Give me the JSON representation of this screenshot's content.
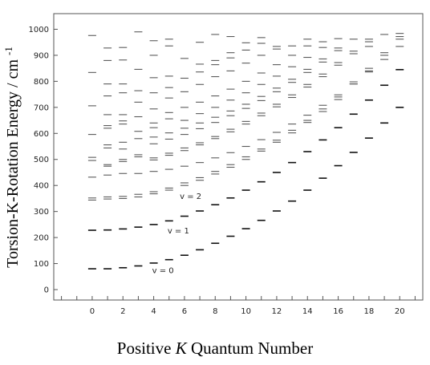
{
  "chart_data": {
    "type": "scatter",
    "xlabel_prefix": "Positive ",
    "xlabel_italic": "K",
    "xlabel_suffix": " Quantum Number",
    "ylabel": "Torsion-K-Rotation Energy / cm",
    "ylabel_sup": "-1",
    "xlim": [
      -2.5,
      21.5
    ],
    "ylim": [
      -40,
      1060
    ],
    "x_ticks": [
      0,
      2,
      4,
      6,
      8,
      10,
      12,
      14,
      16,
      18,
      20
    ],
    "y_ticks": [
      0,
      100,
      200,
      300,
      400,
      500,
      600,
      700,
      800,
      900,
      1000
    ],
    "grid": false,
    "annotations": [
      {
        "text": "v = 0",
        "x": 3.9,
        "y": 72
      },
      {
        "text": "v = 1",
        "x": 4.9,
        "y": 225
      },
      {
        "text": "v = 2",
        "x": 5.7,
        "y": 357
      }
    ],
    "series": [
      {
        "values": [
          {
            "x": 0,
            "y": 80
          },
          {
            "x": 1,
            "y": 80
          },
          {
            "x": 2,
            "y": 84
          },
          {
            "x": 3,
            "y": 91
          },
          {
            "x": 4,
            "y": 102
          },
          {
            "x": 5,
            "y": 115
          },
          {
            "x": 6,
            "y": 132
          },
          {
            "x": 7,
            "y": 153
          },
          {
            "x": 8,
            "y": 178
          },
          {
            "x": 9,
            "y": 205
          },
          {
            "x": 10,
            "y": 234
          },
          {
            "x": 11,
            "y": 266
          },
          {
            "x": 12,
            "y": 302
          },
          {
            "x": 13,
            "y": 340
          },
          {
            "x": 14,
            "y": 382
          },
          {
            "x": 15,
            "y": 428
          },
          {
            "x": 16,
            "y": 476
          },
          {
            "x": 17,
            "y": 527
          },
          {
            "x": 18,
            "y": 582
          },
          {
            "x": 19,
            "y": 640
          },
          {
            "x": 20,
            "y": 700
          }
        ]
      },
      {
        "values": [
          {
            "x": 0,
            "y": 228
          },
          {
            "x": 1,
            "y": 229
          },
          {
            "x": 2,
            "y": 233
          },
          {
            "x": 3,
            "y": 240
          },
          {
            "x": 4,
            "y": 250
          },
          {
            "x": 5,
            "y": 264
          },
          {
            "x": 6,
            "y": 282
          },
          {
            "x": 7,
            "y": 302
          },
          {
            "x": 8,
            "y": 326
          },
          {
            "x": 9,
            "y": 352
          },
          {
            "x": 10,
            "y": 382
          },
          {
            "x": 11,
            "y": 414
          },
          {
            "x": 12,
            "y": 450
          },
          {
            "x": 13,
            "y": 488
          },
          {
            "x": 14,
            "y": 530
          },
          {
            "x": 15,
            "y": 575
          },
          {
            "x": 16,
            "y": 622
          },
          {
            "x": 17,
            "y": 674
          },
          {
            "x": 18,
            "y": 728
          },
          {
            "x": 19,
            "y": 785
          },
          {
            "x": 20,
            "y": 845
          }
        ]
      },
      {
        "values": [
          {
            "x": 0,
            "y": 344
          },
          {
            "x": 0,
            "y": 352
          },
          {
            "x": 1,
            "y": 348
          },
          {
            "x": 1,
            "y": 356
          },
          {
            "x": 2,
            "y": 350
          },
          {
            "x": 2,
            "y": 358
          },
          {
            "x": 3,
            "y": 356
          },
          {
            "x": 3,
            "y": 366
          },
          {
            "x": 4,
            "y": 368
          },
          {
            "x": 4,
            "y": 376
          },
          {
            "x": 5,
            "y": 382
          },
          {
            "x": 5,
            "y": 390
          },
          {
            "x": 6,
            "y": 400
          },
          {
            "x": 6,
            "y": 410
          },
          {
            "x": 7,
            "y": 420
          },
          {
            "x": 7,
            "y": 430
          },
          {
            "x": 8,
            "y": 444
          },
          {
            "x": 8,
            "y": 454
          },
          {
            "x": 9,
            "y": 470
          },
          {
            "x": 9,
            "y": 480
          },
          {
            "x": 10,
            "y": 500
          },
          {
            "x": 10,
            "y": 510
          },
          {
            "x": 11,
            "y": 532
          },
          {
            "x": 11,
            "y": 540
          },
          {
            "x": 12,
            "y": 566
          },
          {
            "x": 12,
            "y": 574
          },
          {
            "x": 13,
            "y": 602
          },
          {
            "x": 13,
            "y": 612
          },
          {
            "x": 14,
            "y": 642
          },
          {
            "x": 14,
            "y": 650
          },
          {
            "x": 15,
            "y": 684
          },
          {
            "x": 15,
            "y": 694
          },
          {
            "x": 16,
            "y": 730
          },
          {
            "x": 16,
            "y": 740
          },
          {
            "x": 17,
            "y": 790
          },
          {
            "x": 17,
            "y": 798
          },
          {
            "x": 18,
            "y": 840
          },
          {
            "x": 18,
            "y": 850
          },
          {
            "x": 19,
            "y": 900
          },
          {
            "x": 19,
            "y": 910
          },
          {
            "x": 20,
            "y": 962
          },
          {
            "x": 20,
            "y": 972
          }
        ]
      },
      {
        "values": [
          {
            "x": 0,
            "y": 432
          },
          {
            "x": 1,
            "y": 440
          },
          {
            "x": 2,
            "y": 446
          },
          {
            "x": 3,
            "y": 446
          },
          {
            "x": 4,
            "y": 454
          },
          {
            "x": 5,
            "y": 462
          },
          {
            "x": 6,
            "y": 474
          },
          {
            "x": 7,
            "y": 488
          },
          {
            "x": 8,
            "y": 506
          },
          {
            "x": 9,
            "y": 526
          },
          {
            "x": 10,
            "y": 550
          },
          {
            "x": 11,
            "y": 576
          },
          {
            "x": 12,
            "y": 604
          },
          {
            "x": 13,
            "y": 636
          },
          {
            "x": 14,
            "y": 670
          },
          {
            "x": 15,
            "y": 708
          },
          {
            "x": 16,
            "y": 748
          },
          {
            "x": 17,
            "y": 790
          },
          {
            "x": 18,
            "y": 836
          },
          {
            "x": 19,
            "y": 884
          },
          {
            "x": 20,
            "y": 934
          }
        ]
      },
      {
        "values": [
          {
            "x": 0,
            "y": 496
          },
          {
            "x": 0,
            "y": 508
          },
          {
            "x": 1,
            "y": 474
          },
          {
            "x": 1,
            "y": 480
          },
          {
            "x": 2,
            "y": 492
          },
          {
            "x": 2,
            "y": 500
          },
          {
            "x": 3,
            "y": 510
          },
          {
            "x": 3,
            "y": 518
          },
          {
            "x": 4,
            "y": 498
          },
          {
            "x": 4,
            "y": 506
          },
          {
            "x": 5,
            "y": 516
          },
          {
            "x": 5,
            "y": 524
          },
          {
            "x": 6,
            "y": 534
          },
          {
            "x": 6,
            "y": 544
          },
          {
            "x": 7,
            "y": 556
          },
          {
            "x": 7,
            "y": 564
          },
          {
            "x": 8,
            "y": 580
          },
          {
            "x": 8,
            "y": 588
          },
          {
            "x": 9,
            "y": 606
          },
          {
            "x": 9,
            "y": 616
          },
          {
            "x": 10,
            "y": 636
          },
          {
            "x": 10,
            "y": 646
          },
          {
            "x": 11,
            "y": 668
          },
          {
            "x": 11,
            "y": 678
          },
          {
            "x": 12,
            "y": 702
          },
          {
            "x": 12,
            "y": 712
          },
          {
            "x": 13,
            "y": 738
          },
          {
            "x": 13,
            "y": 748
          },
          {
            "x": 14,
            "y": 778
          },
          {
            "x": 14,
            "y": 788
          },
          {
            "x": 15,
            "y": 818
          },
          {
            "x": 15,
            "y": 828
          },
          {
            "x": 16,
            "y": 862
          },
          {
            "x": 16,
            "y": 872
          },
          {
            "x": 17,
            "y": 906
          },
          {
            "x": 17,
            "y": 916
          },
          {
            "x": 18,
            "y": 952
          },
          {
            "x": 18,
            "y": 962
          },
          {
            "x": 19,
            "y": 980
          },
          {
            "x": 20,
            "y": 984
          }
        ]
      },
      {
        "values": [
          {
            "x": 0,
            "y": 596
          },
          {
            "x": 1,
            "y": 544
          },
          {
            "x": 1,
            "y": 556
          },
          {
            "x": 2,
            "y": 540
          },
          {
            "x": 2,
            "y": 566
          },
          {
            "x": 3,
            "y": 580
          },
          {
            "x": 4,
            "y": 560
          },
          {
            "x": 4,
            "y": 586
          },
          {
            "x": 5,
            "y": 578
          },
          {
            "x": 5,
            "y": 602
          },
          {
            "x": 6,
            "y": 596
          },
          {
            "x": 6,
            "y": 620
          },
          {
            "x": 7,
            "y": 618
          },
          {
            "x": 7,
            "y": 640
          },
          {
            "x": 8,
            "y": 642
          },
          {
            "x": 8,
            "y": 662
          },
          {
            "x": 9,
            "y": 668
          },
          {
            "x": 9,
            "y": 686
          },
          {
            "x": 10,
            "y": 696
          },
          {
            "x": 10,
            "y": 712
          },
          {
            "x": 11,
            "y": 726
          },
          {
            "x": 11,
            "y": 742
          },
          {
            "x": 12,
            "y": 760
          },
          {
            "x": 12,
            "y": 774
          },
          {
            "x": 13,
            "y": 796
          },
          {
            "x": 13,
            "y": 808
          },
          {
            "x": 14,
            "y": 834
          },
          {
            "x": 14,
            "y": 846
          },
          {
            "x": 15,
            "y": 874
          },
          {
            "x": 15,
            "y": 886
          },
          {
            "x": 16,
            "y": 918
          },
          {
            "x": 16,
            "y": 928
          },
          {
            "x": 17,
            "y": 962
          },
          {
            "x": 18,
            "y": 934
          }
        ]
      },
      {
        "values": [
          {
            "x": 0,
            "y": 706
          },
          {
            "x": 1,
            "y": 620
          },
          {
            "x": 1,
            "y": 630
          },
          {
            "x": 2,
            "y": 636
          },
          {
            "x": 2,
            "y": 648
          },
          {
            "x": 3,
            "y": 608
          },
          {
            "x": 3,
            "y": 664
          },
          {
            "x": 4,
            "y": 622
          },
          {
            "x": 4,
            "y": 640
          },
          {
            "x": 5,
            "y": 656
          },
          {
            "x": 5,
            "y": 680
          },
          {
            "x": 6,
            "y": 650
          },
          {
            "x": 6,
            "y": 700
          },
          {
            "x": 7,
            "y": 676
          },
          {
            "x": 7,
            "y": 720
          },
          {
            "x": 8,
            "y": 700
          },
          {
            "x": 8,
            "y": 744
          },
          {
            "x": 9,
            "y": 728
          },
          {
            "x": 9,
            "y": 770
          },
          {
            "x": 10,
            "y": 756
          },
          {
            "x": 10,
            "y": 800
          },
          {
            "x": 11,
            "y": 788
          },
          {
            "x": 11,
            "y": 832
          },
          {
            "x": 12,
            "y": 820
          },
          {
            "x": 12,
            "y": 864
          },
          {
            "x": 13,
            "y": 856
          },
          {
            "x": 13,
            "y": 900
          },
          {
            "x": 14,
            "y": 892
          },
          {
            "x": 14,
            "y": 936
          },
          {
            "x": 15,
            "y": 930
          },
          {
            "x": 15,
            "y": 952
          },
          {
            "x": 16,
            "y": 964
          }
        ]
      },
      {
        "values": [
          {
            "x": 0,
            "y": 834
          },
          {
            "x": 1,
            "y": 672
          },
          {
            "x": 1,
            "y": 744
          },
          {
            "x": 2,
            "y": 672
          },
          {
            "x": 2,
            "y": 756
          },
          {
            "x": 3,
            "y": 720
          },
          {
            "x": 3,
            "y": 764
          },
          {
            "x": 4,
            "y": 694
          },
          {
            "x": 4,
            "y": 756
          },
          {
            "x": 5,
            "y": 736
          },
          {
            "x": 5,
            "y": 776
          },
          {
            "x": 6,
            "y": 760
          },
          {
            "x": 6,
            "y": 812
          },
          {
            "x": 7,
            "y": 788
          },
          {
            "x": 7,
            "y": 836
          },
          {
            "x": 8,
            "y": 818
          },
          {
            "x": 8,
            "y": 864
          },
          {
            "x": 9,
            "y": 840
          },
          {
            "x": 9,
            "y": 890
          },
          {
            "x": 10,
            "y": 870
          },
          {
            "x": 10,
            "y": 920
          },
          {
            "x": 11,
            "y": 900
          },
          {
            "x": 11,
            "y": 946
          },
          {
            "x": 12,
            "y": 934
          },
          {
            "x": 13,
            "y": 936
          },
          {
            "x": 14,
            "y": 962
          }
        ]
      },
      {
        "values": [
          {
            "x": 0,
            "y": 976
          },
          {
            "x": 1,
            "y": 790
          },
          {
            "x": 1,
            "y": 880
          },
          {
            "x": 1,
            "y": 928
          },
          {
            "x": 2,
            "y": 790
          },
          {
            "x": 2,
            "y": 882
          },
          {
            "x": 2,
            "y": 930
          },
          {
            "x": 3,
            "y": 846
          },
          {
            "x": 3,
            "y": 990
          },
          {
            "x": 4,
            "y": 814
          },
          {
            "x": 4,
            "y": 900
          },
          {
            "x": 4,
            "y": 956
          },
          {
            "x": 5,
            "y": 820
          },
          {
            "x": 5,
            "y": 936
          },
          {
            "x": 5,
            "y": 962
          },
          {
            "x": 6,
            "y": 888
          },
          {
            "x": 7,
            "y": 866
          },
          {
            "x": 7,
            "y": 950
          },
          {
            "x": 8,
            "y": 880
          },
          {
            "x": 8,
            "y": 980
          },
          {
            "x": 9,
            "y": 910
          },
          {
            "x": 9,
            "y": 972
          },
          {
            "x": 10,
            "y": 948
          },
          {
            "x": 11,
            "y": 968
          },
          {
            "x": 12,
            "y": 924
          }
        ]
      }
    ]
  }
}
